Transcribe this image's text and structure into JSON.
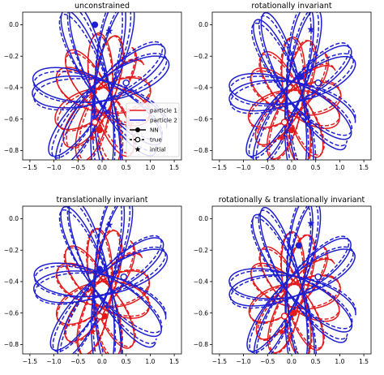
{
  "chart_data": [
    {
      "type": "line",
      "title": "unconstrained",
      "xlim": [
        -1.65,
        1.65
      ],
      "ylim": [
        -0.86,
        0.08
      ],
      "xticks": [
        -1.5,
        -1.0,
        -0.5,
        0.0,
        0.5,
        1.0,
        1.5
      ],
      "xtick_labels": [
        "−1.5",
        "−1.0",
        "−0.5",
        "0.0",
        "0.5",
        "1.0",
        "1.5"
      ],
      "yticks": [
        0.0,
        -0.2,
        -0.4,
        -0.6,
        -0.8
      ],
      "ytick_labels": [
        "0.0",
        "−0.2",
        "−0.4",
        "−0.6",
        "−0.8"
      ],
      "show_legend": true,
      "series": [
        {
          "name": "particle 1",
          "color": "#e31a1c",
          "linestyle": "solid",
          "role": "NN",
          "center": [
            0.0,
            -0.48
          ],
          "rx": 1.02,
          "ry": 0.19,
          "lobes": 6,
          "tilt0": 0.55,
          "precession": 1.05,
          "t_end": 6.3,
          "initial": [
            -0.2,
            -0.72
          ],
          "end": [
            -0.05,
            -0.67
          ]
        },
        {
          "name": "particle 1",
          "color": "#e31a1c",
          "linestyle": "dashed",
          "role": "true",
          "center": [
            0.02,
            -0.48
          ],
          "rx": 1.0,
          "ry": 0.18,
          "lobes": 6,
          "tilt0": 0.6,
          "precession": 1.05,
          "t_end": 6.3,
          "initial": [
            -0.2,
            -0.72
          ],
          "end": [
            -0.15,
            -0.62
          ]
        },
        {
          "name": "particle 2",
          "color": "#1f1fd2",
          "linestyle": "solid",
          "role": "NN",
          "center": [
            0.0,
            -0.42
          ],
          "rx": 1.45,
          "ry": 0.16,
          "lobes": 7,
          "tilt0": -0.4,
          "precession": 0.95,
          "t_end": 6.3,
          "initial": [
            0.15,
            -0.04
          ],
          "end": [
            -0.15,
            -0.0
          ]
        },
        {
          "name": "particle 2",
          "color": "#1f1fd2",
          "linestyle": "dashed",
          "role": "true",
          "center": [
            0.0,
            -0.42
          ],
          "rx": 1.42,
          "ry": 0.15,
          "lobes": 7,
          "tilt0": -0.35,
          "precession": 0.95,
          "t_end": 6.3,
          "initial": [
            0.15,
            -0.04
          ],
          "end": [
            0.5,
            -0.37
          ]
        }
      ]
    },
    {
      "type": "line",
      "title": "rotationally invariant",
      "xlim": [
        -1.65,
        1.65
      ],
      "ylim": [
        -0.86,
        0.08
      ],
      "xticks": [
        -1.5,
        -1.0,
        -0.5,
        0.0,
        0.5,
        1.0,
        1.5
      ],
      "xtick_labels": [
        "−1.5",
        "−1.0",
        "−0.5",
        "0.0",
        "0.5",
        "1.0",
        "1.5"
      ],
      "yticks": [
        0.0,
        -0.2,
        -0.4,
        -0.6,
        -0.8
      ],
      "ytick_labels": [
        "0.0",
        "−0.2",
        "−0.4",
        "−0.6",
        "−0.8"
      ],
      "show_legend": false,
      "series": [
        {
          "name": "particle 1",
          "color": "#e31a1c",
          "linestyle": "solid",
          "role": "NN",
          "center": [
            0.05,
            -0.49
          ],
          "rx": 0.98,
          "ry": 0.18,
          "lobes": 6,
          "tilt0": 0.5,
          "precession": 1.05,
          "t_end": 6.3,
          "initial": [
            -0.2,
            -0.72
          ],
          "end": [
            0.0,
            -0.67
          ]
        },
        {
          "name": "particle 1",
          "color": "#e31a1c",
          "linestyle": "dashed",
          "role": "true",
          "center": [
            0.05,
            -0.49
          ],
          "rx": 0.97,
          "ry": 0.17,
          "lobes": 6,
          "tilt0": 0.55,
          "precession": 1.05,
          "t_end": 6.3,
          "initial": [
            -0.2,
            -0.72
          ],
          "end": [
            -0.15,
            -0.62
          ]
        },
        {
          "name": "particle 2",
          "color": "#1f1fd2",
          "linestyle": "solid",
          "role": "NN",
          "center": [
            0.05,
            -0.43
          ],
          "rx": 1.35,
          "ry": 0.15,
          "lobes": 7,
          "tilt0": -0.35,
          "precession": 0.95,
          "t_end": 6.3,
          "initial": [
            0.4,
            -0.03
          ],
          "end": [
            0.2,
            -0.33
          ]
        },
        {
          "name": "particle 2",
          "color": "#1f1fd2",
          "linestyle": "dashed",
          "role": "true",
          "center": [
            0.05,
            -0.43
          ],
          "rx": 1.33,
          "ry": 0.15,
          "lobes": 7,
          "tilt0": -0.3,
          "precession": 0.95,
          "t_end": 6.3,
          "initial": [
            0.4,
            -0.03
          ],
          "end": [
            0.55,
            -0.37
          ]
        }
      ]
    },
    {
      "type": "line",
      "title": "translationally invariant",
      "xlim": [
        -1.65,
        1.65
      ],
      "ylim": [
        -0.86,
        0.08
      ],
      "xticks": [
        -1.5,
        -1.0,
        -0.5,
        0.0,
        0.5,
        1.0,
        1.5
      ],
      "xtick_labels": [
        "−1.5",
        "−1.0",
        "−0.5",
        "0.0",
        "0.5",
        "1.0",
        "1.5"
      ],
      "yticks": [
        0.0,
        -0.2,
        -0.4,
        -0.6,
        -0.8
      ],
      "ytick_labels": [
        "0.0",
        "−0.2",
        "−0.4",
        "−0.6",
        "−0.8"
      ],
      "show_legend": false,
      "series": [
        {
          "name": "particle 1",
          "color": "#e31a1c",
          "linestyle": "solid",
          "role": "NN",
          "center": [
            0.0,
            -0.48
          ],
          "rx": 1.0,
          "ry": 0.19,
          "lobes": 6,
          "tilt0": 0.58,
          "precession": 1.05,
          "t_end": 6.3,
          "initial": [
            -0.2,
            -0.72
          ],
          "end": [
            0.05,
            -0.62
          ]
        },
        {
          "name": "particle 1",
          "color": "#e31a1c",
          "linestyle": "dashed",
          "role": "true",
          "center": [
            0.0,
            -0.48
          ],
          "rx": 1.0,
          "ry": 0.18,
          "lobes": 6,
          "tilt0": 0.62,
          "precession": 1.05,
          "t_end": 6.3,
          "initial": [
            -0.2,
            -0.72
          ],
          "end": [
            -0.05,
            -0.62
          ]
        },
        {
          "name": "particle 2",
          "color": "#1f1fd2",
          "linestyle": "solid",
          "role": "NN",
          "center": [
            0.0,
            -0.42
          ],
          "rx": 1.42,
          "ry": 0.16,
          "lobes": 7,
          "tilt0": -0.38,
          "precession": 0.95,
          "t_end": 6.3,
          "initial": [
            0.15,
            -0.04
          ],
          "end": [
            -0.05,
            -0.32
          ]
        },
        {
          "name": "particle 2",
          "color": "#1f1fd2",
          "linestyle": "dashed",
          "role": "true",
          "center": [
            0.0,
            -0.42
          ],
          "rx": 1.4,
          "ry": 0.15,
          "lobes": 7,
          "tilt0": -0.34,
          "precession": 0.95,
          "t_end": 6.3,
          "initial": [
            0.15,
            -0.04
          ],
          "end": [
            0.45,
            -0.37
          ]
        }
      ]
    },
    {
      "type": "line",
      "title": "rotationally & translationally invariant",
      "xlim": [
        -1.65,
        1.65
      ],
      "ylim": [
        -0.86,
        0.08
      ],
      "xticks": [
        -1.5,
        -1.0,
        -0.5,
        0.0,
        0.5,
        1.0,
        1.5
      ],
      "xtick_labels": [
        "−1.5",
        "−1.0",
        "−0.5",
        "0.0",
        "0.5",
        "1.0",
        "1.5"
      ],
      "yticks": [
        0.0,
        -0.2,
        -0.4,
        -0.6,
        -0.8
      ],
      "ytick_labels": [
        "0.0",
        "−0.2",
        "−0.4",
        "−0.6",
        "−0.8"
      ],
      "show_legend": false,
      "series": [
        {
          "name": "particle 1",
          "color": "#e31a1c",
          "linestyle": "solid",
          "role": "NN",
          "center": [
            0.05,
            -0.49
          ],
          "rx": 0.97,
          "ry": 0.18,
          "lobes": 6,
          "tilt0": 0.52,
          "precession": 1.05,
          "t_end": 6.3,
          "initial": [
            -0.2,
            -0.72
          ],
          "end": [
            0.05,
            -0.6
          ]
        },
        {
          "name": "particle 1",
          "color": "#e31a1c",
          "linestyle": "dashed",
          "role": "true",
          "center": [
            0.05,
            -0.49
          ],
          "rx": 0.96,
          "ry": 0.17,
          "lobes": 6,
          "tilt0": 0.56,
          "precession": 1.05,
          "t_end": 6.3,
          "initial": [
            -0.2,
            -0.72
          ],
          "end": [
            -0.15,
            -0.62
          ]
        },
        {
          "name": "particle 2",
          "color": "#1f1fd2",
          "linestyle": "solid",
          "role": "NN",
          "center": [
            0.05,
            -0.43
          ],
          "rx": 1.35,
          "ry": 0.15,
          "lobes": 7,
          "tilt0": -0.33,
          "precession": 0.95,
          "t_end": 6.3,
          "initial": [
            0.4,
            -0.03
          ],
          "end": [
            0.15,
            -0.17
          ]
        },
        {
          "name": "particle 2",
          "color": "#1f1fd2",
          "linestyle": "dashed",
          "role": "true",
          "center": [
            0.05,
            -0.43
          ],
          "rx": 1.33,
          "ry": 0.15,
          "lobes": 7,
          "tilt0": -0.29,
          "precession": 0.95,
          "t_end": 6.3,
          "initial": [
            0.4,
            -0.03
          ],
          "end": [
            0.55,
            -0.37
          ]
        }
      ]
    }
  ],
  "legend": {
    "entries": [
      {
        "label": "particle 1",
        "kind": "line",
        "color": "#e31a1c"
      },
      {
        "label": "particle 2",
        "kind": "line",
        "color": "#1f1fd2"
      },
      {
        "label": "NN",
        "kind": "filled-circle",
        "color": "#000000"
      },
      {
        "label": "true",
        "kind": "open-circle",
        "color": "#000000"
      },
      {
        "label": "initial",
        "kind": "star",
        "color": "#000000"
      }
    ]
  }
}
